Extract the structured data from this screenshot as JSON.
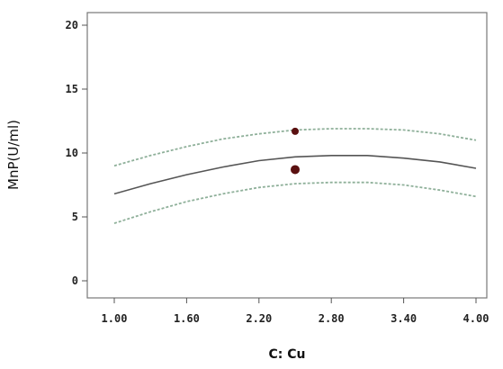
{
  "chart_data": {
    "type": "line",
    "title": "",
    "xlabel": "C: Cu",
    "ylabel": "MnP(U/ml)",
    "xlim": [
      1.0,
      4.0
    ],
    "ylim": [
      0,
      20
    ],
    "x_ticks": [
      "1.00",
      "1.60",
      "2.20",
      "2.80",
      "3.40",
      "4.00"
    ],
    "y_ticks": [
      "0",
      "5",
      "10",
      "15",
      "20"
    ],
    "grid": false,
    "legend": "none",
    "x": [
      1.0,
      1.3,
      1.6,
      1.9,
      2.2,
      2.5,
      2.8,
      3.1,
      3.4,
      3.7,
      4.0
    ],
    "series": [
      {
        "role": "upper-band",
        "style": "dashed",
        "color": "#8fb09a",
        "values": [
          9.0,
          9.8,
          10.5,
          11.1,
          11.5,
          11.8,
          11.9,
          11.9,
          11.8,
          11.5,
          11.0
        ]
      },
      {
        "role": "prediction",
        "style": "solid",
        "color": "#555555",
        "values": [
          6.8,
          7.6,
          8.3,
          8.9,
          9.4,
          9.7,
          9.8,
          9.8,
          9.6,
          9.3,
          8.8
        ]
      },
      {
        "role": "lower-band",
        "style": "dashed",
        "color": "#8fb09a",
        "values": [
          4.5,
          5.4,
          6.2,
          6.8,
          7.3,
          7.6,
          7.7,
          7.7,
          7.5,
          7.1,
          6.6
        ]
      }
    ],
    "points": [
      {
        "x": 2.5,
        "y": 11.7,
        "color": "#5a1010",
        "size": "small"
      },
      {
        "x": 2.5,
        "y": 8.7,
        "color": "#5a1010",
        "size": "large"
      }
    ]
  }
}
